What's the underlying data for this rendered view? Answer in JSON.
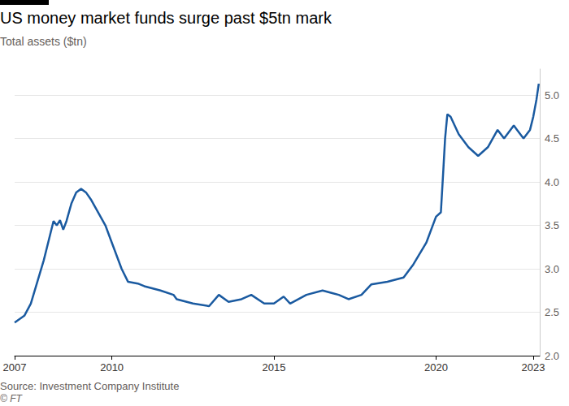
{
  "chart_data": {
    "type": "line",
    "title": "US money market funds surge past $5tn mark",
    "subtitle": "Total assets ($tn)",
    "source": "Source: Investment Company Institute",
    "credit": "© FT",
    "x": [
      2007.0,
      2007.15,
      2007.3,
      2007.5,
      2007.7,
      2007.9,
      2008.1,
      2008.2,
      2008.3,
      2008.4,
      2008.5,
      2008.6,
      2008.75,
      2008.9,
      2009.05,
      2009.2,
      2009.35,
      2009.5,
      2009.8,
      2010.0,
      2010.3,
      2010.5,
      2010.8,
      2011.0,
      2011.5,
      2011.9,
      2012.0,
      2012.5,
      2013.0,
      2013.3,
      2013.6,
      2014.0,
      2014.3,
      2014.7,
      2015.0,
      2015.3,
      2015.5,
      2016.0,
      2016.5,
      2016.8,
      2017.0,
      2017.3,
      2017.7,
      2018.0,
      2018.5,
      2019.0,
      2019.3,
      2019.7,
      2020.0,
      2020.15,
      2020.22,
      2020.28,
      2020.35,
      2020.45,
      2020.7,
      2021.0,
      2021.3,
      2021.6,
      2021.9,
      2022.1,
      2022.4,
      2022.5,
      2022.7,
      2022.9,
      2023.0,
      2023.05,
      2023.1,
      2023.17
    ],
    "values": [
      2.38,
      2.42,
      2.46,
      2.6,
      2.85,
      3.1,
      3.4,
      3.55,
      3.5,
      3.56,
      3.45,
      3.55,
      3.75,
      3.88,
      3.92,
      3.88,
      3.8,
      3.7,
      3.5,
      3.3,
      3.0,
      2.85,
      2.83,
      2.8,
      2.75,
      2.7,
      2.65,
      2.6,
      2.57,
      2.7,
      2.62,
      2.65,
      2.7,
      2.6,
      2.6,
      2.68,
      2.6,
      2.7,
      2.75,
      2.72,
      2.7,
      2.65,
      2.7,
      2.82,
      2.85,
      2.9,
      3.05,
      3.3,
      3.6,
      3.65,
      4.1,
      4.5,
      4.78,
      4.75,
      4.55,
      4.4,
      4.3,
      4.4,
      4.6,
      4.5,
      4.65,
      4.6,
      4.5,
      4.6,
      4.75,
      4.85,
      4.95,
      5.13
    ],
    "color": "#1a5aa0",
    "xlim": [
      2007,
      2023.2
    ],
    "xticks": [
      2007,
      2010,
      2015,
      2020,
      2023
    ],
    "ylim": [
      2,
      5.3
    ],
    "yticks": [
      {
        "value": 2,
        "label": "2.0"
      },
      {
        "value": 2.5,
        "label": "2.5"
      },
      {
        "value": 3,
        "label": "3.0"
      },
      {
        "value": 3.5,
        "label": "3.5"
      },
      {
        "value": 4,
        "label": "4.0"
      },
      {
        "value": 4.5,
        "label": "4.5"
      },
      {
        "value": 5,
        "label": "5.0"
      }
    ],
    "grid": true
  }
}
